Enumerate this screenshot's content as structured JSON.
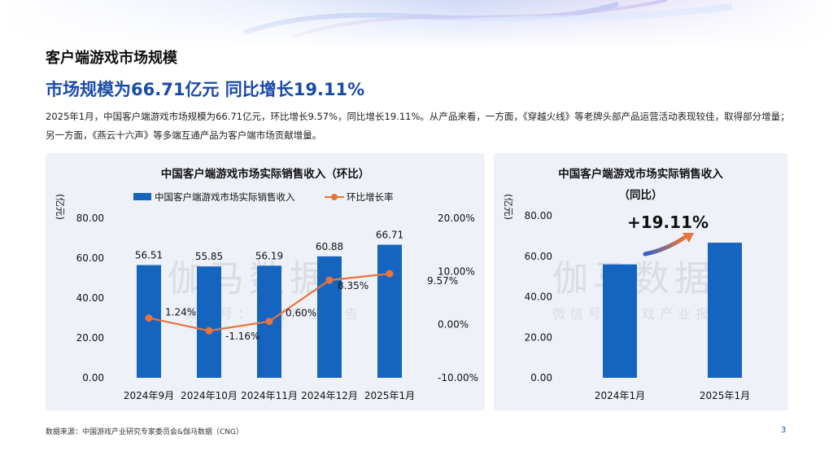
{
  "page": {
    "title": "客户端游戏市场规模",
    "headline": "市场规模为66.71亿元  同比增长19.11%",
    "description": "2025年1月，中国客户端游戏市场规模为66.71亿元，环比增长9.57%，同比增长19.11%。从产品来看，一方面，《穿越火线》等老牌头部产品运营活动表现较佳，取得部分增量；另一方面，《燕云十六声》等多端互通产品为客户端市场贡献增量。",
    "source": "数据来源：中国游戏产业研究专家委员会&伽马数据（CNG）",
    "page_number": "3",
    "watermark_main": "伽马数据",
    "watermark_sub": "微信号：游戏产业报告"
  },
  "colors": {
    "bar": "#1565c0",
    "line": "#e8743b",
    "headline": "#1a4aa8",
    "panel": "#eef1f7"
  },
  "chart_data": [
    {
      "type": "bar",
      "title": "中国客户端游戏市场实际销售收入（环比）",
      "ylabel": "(亿元)",
      "legend_position": "top",
      "categories": [
        "2024年9月",
        "2024年10月",
        "2024年11月",
        "2024年12月",
        "2025年1月"
      ],
      "series": [
        {
          "name": "中国客户端游戏市场实际销售收入",
          "type": "bar",
          "values": [
            56.51,
            55.85,
            56.19,
            60.88,
            66.71
          ],
          "labels": [
            "56.51",
            "55.85",
            "56.19",
            "60.88",
            "66.71"
          ]
        },
        {
          "name": "环比增长率",
          "type": "line",
          "axis": "right",
          "values": [
            1.24,
            -1.16,
            0.6,
            8.35,
            9.57
          ],
          "labels": [
            "1.24%",
            "-1.16%",
            "0.60%",
            "8.35%",
            "9.57%"
          ]
        }
      ],
      "y_left": {
        "min": 0,
        "max": 80,
        "ticks": [
          "0.00",
          "20.00",
          "40.00",
          "60.00",
          "80.00"
        ]
      },
      "y_right": {
        "min": -10,
        "max": 20,
        "ticks": [
          "-10.00%",
          "0.00%",
          "10.00%",
          "20.00%"
        ]
      }
    },
    {
      "type": "bar",
      "title": "中国客户端游戏市场实际销售收入",
      "subtitle": "（同比）",
      "ylabel": "(亿元)",
      "categories": [
        "2024年1月",
        "2025年1月"
      ],
      "values": [
        56.01,
        66.71
      ],
      "y_left": {
        "min": 0,
        "max": 80,
        "ticks": [
          "0.00",
          "20.00",
          "40.00",
          "60.00",
          "80.00"
        ]
      },
      "annotation": "+19.11%"
    }
  ]
}
